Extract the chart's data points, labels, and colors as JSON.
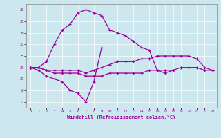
{
  "xlabel": "Windchill (Refroidissement éolien,°C)",
  "xlim": [
    -0.5,
    23.5
  ],
  "ylim": [
    16,
    34
  ],
  "yticks": [
    17,
    19,
    21,
    23,
    25,
    27,
    29,
    31,
    33
  ],
  "xticks": [
    0,
    1,
    2,
    3,
    4,
    5,
    6,
    7,
    8,
    9,
    10,
    11,
    12,
    13,
    14,
    15,
    16,
    17,
    18,
    19,
    20,
    21,
    22,
    23
  ],
  "background_color": "#cce8ee",
  "line_color": "#990099",
  "grid_color": "#ffffff",
  "lines": [
    {
      "x": [
        0,
        1,
        2,
        3,
        4,
        5,
        6,
        7,
        8,
        9,
        10,
        11,
        12,
        13,
        14,
        15,
        16,
        17,
        18,
        19,
        20,
        21,
        22,
        23
      ],
      "y": [
        23,
        23,
        24,
        27,
        29.5,
        30.5,
        32.5,
        33,
        32.5,
        32,
        29.5,
        29,
        28.5,
        27.5,
        26.5,
        26,
        22.5,
        22,
        22.5,
        999,
        999,
        999,
        999,
        999
      ]
    },
    {
      "x": [
        0,
        1,
        2,
        3,
        4,
        5,
        6,
        7,
        8,
        9,
        10,
        11,
        12,
        13,
        14,
        15,
        16,
        17,
        18,
        19,
        20,
        21,
        22,
        23
      ],
      "y": [
        23,
        22.5,
        21.5,
        21,
        20.5,
        19,
        18.5,
        17,
        20.5,
        26.5,
        999,
        999,
        999,
        999,
        999,
        999,
        999,
        999,
        999,
        999,
        999,
        999,
        999,
        999
      ]
    },
    {
      "x": [
        0,
        1,
        2,
        3,
        4,
        5,
        6,
        7,
        8,
        9,
        10,
        11,
        12,
        13,
        14,
        15,
        16,
        17,
        18,
        19,
        20,
        21,
        22,
        23
      ],
      "y": [
        23,
        23,
        22.5,
        22.5,
        22.5,
        22.5,
        22.5,
        22,
        22.5,
        23,
        23.5,
        24,
        24,
        24,
        24.5,
        24.5,
        25,
        25,
        25,
        25,
        25,
        24.5,
        23,
        22.5
      ]
    },
    {
      "x": [
        0,
        1,
        2,
        3,
        4,
        5,
        6,
        7,
        8,
        9,
        10,
        11,
        12,
        13,
        14,
        15,
        16,
        17,
        18,
        19,
        20,
        21,
        22,
        23
      ],
      "y": [
        23,
        23,
        22.5,
        22,
        22,
        22,
        22,
        21.5,
        21.5,
        21.5,
        22,
        22,
        22,
        22,
        22,
        22.5,
        22.5,
        22.5,
        22.5,
        23,
        23,
        23,
        22.5,
        22.5
      ]
    }
  ]
}
